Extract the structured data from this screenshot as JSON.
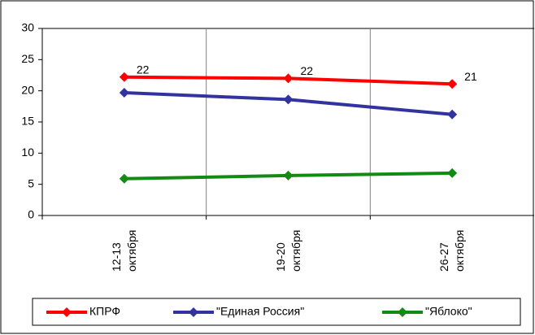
{
  "chart_data": {
    "type": "line",
    "categories": [
      "12-13 октября",
      "19-20 октября",
      "26-27 октября"
    ],
    "series": [
      {
        "name": "КПРФ",
        "color": "#ff0000",
        "values": [
          22.2,
          22,
          21.1
        ],
        "value_labels": [
          "22",
          "22",
          "21"
        ]
      },
      {
        "name": "\"Единая Россия\"",
        "color": "#3333a0",
        "values": [
          19.7,
          18.6,
          16.2
        ]
      },
      {
        "name": "\"Яблоко\"",
        "color": "#138a13",
        "values": [
          5.9,
          6.4,
          6.8
        ]
      }
    ],
    "ylim": [
      0,
      30
    ],
    "yticks": [
      0,
      5,
      10,
      15,
      20,
      25,
      30
    ],
    "legend": "bottom"
  }
}
